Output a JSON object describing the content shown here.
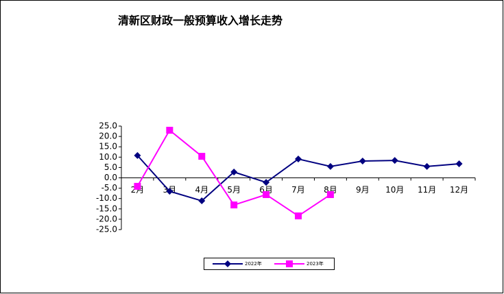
{
  "chart_data": {
    "type": "line",
    "title": "清新区财政一般预算收入增长走势",
    "categories": [
      "2月",
      "3月",
      "4月",
      "5月",
      "6月",
      "7月",
      "8月",
      "9月",
      "10月",
      "11月",
      "12月"
    ],
    "series": [
      {
        "name": "2022年",
        "color": "#000080",
        "marker": "diamond",
        "values": [
          10.8,
          -6.5,
          -11.1,
          2.8,
          -2.2,
          9.1,
          5.5,
          8.1,
          8.4,
          5.5,
          6.8
        ]
      },
      {
        "name": "2023年",
        "color": "#ff00ff",
        "marker": "square",
        "values": [
          -4.1,
          23.0,
          10.4,
          -13.1,
          -8.1,
          -18.4,
          -8.1,
          null,
          null,
          null,
          null
        ]
      }
    ],
    "ylim": [
      -25,
      25
    ],
    "yticks": [
      {
        "value": 25,
        "label": "25.0"
      },
      {
        "value": 20,
        "label": "20.0"
      },
      {
        "value": 15,
        "label": "15.0"
      },
      {
        "value": 10,
        "label": "10.0"
      },
      {
        "value": 5,
        "label": "5.0"
      },
      {
        "value": 0,
        "label": "0.0"
      },
      {
        "value": -5,
        "label": "-5.0"
      },
      {
        "value": -10,
        "label": "-10.0"
      },
      {
        "value": -15,
        "label": "-15.0"
      },
      {
        "value": -20,
        "label": "-20.0"
      },
      {
        "value": -25,
        "label": "-25.0"
      }
    ],
    "grid": false,
    "legend": "bottom"
  }
}
